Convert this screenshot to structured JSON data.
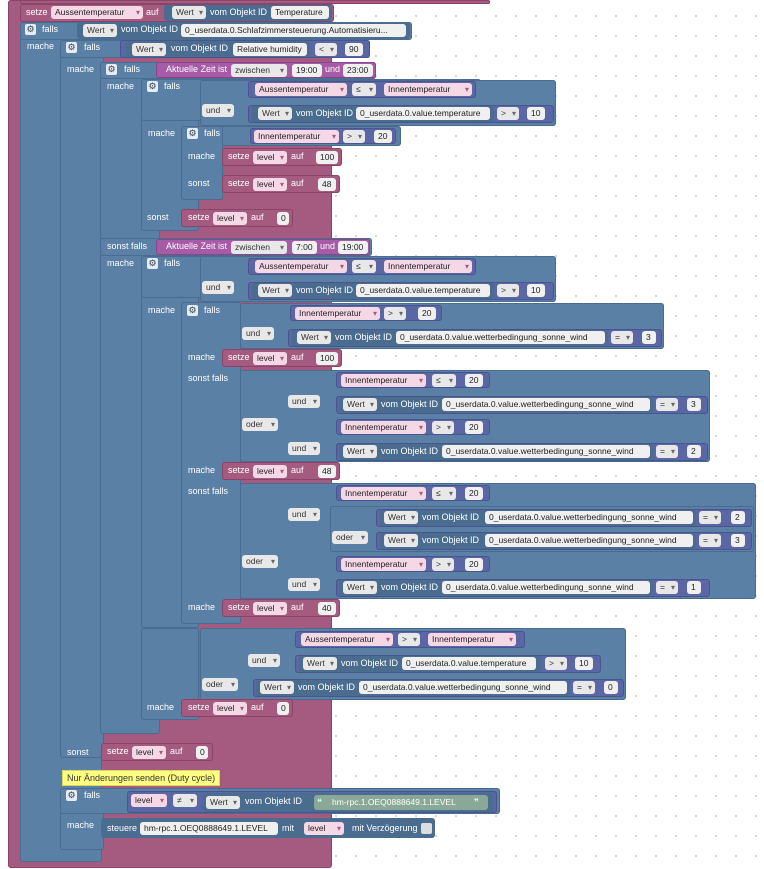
{
  "kw": {
    "setze": "setze",
    "auf": "auf",
    "falls": "falls",
    "mache": "mache",
    "sonst": "sonst",
    "sonst_falls": "sonst falls",
    "vom_objekt_id": "vom Objekt ID",
    "aktuelle_zeit_ist": "Aktuelle Zeit ist",
    "und_text": "und",
    "steuere": "steuere",
    "mit": "mit",
    "mit_verzoegerung": "mit Verzögerung"
  },
  "dd": {
    "wert": "Wert",
    "und": "und",
    "oder": "oder",
    "zwischen": "zwischen",
    "lt": "<",
    "le": "≤",
    "gt": ">",
    "eq": "=",
    "ne": "≠"
  },
  "vars": {
    "aussentemperatur": "Aussentemperatur",
    "innentemperatur": "Innentemperatur",
    "level": "level"
  },
  "ids": {
    "temperature": "Temperature",
    "automatisierung": "0_userdata.0.Schlafzimmersteuerung.Automatisieru...",
    "humidity": "Relative humidity",
    "value_temperature": "0_userdata.0.value.temperature",
    "wetter": "0_userdata.0.value.wetterbedingung_sonne_wind",
    "hm_level": "hm-rpc.1.OEQ0888649.1.LEVEL"
  },
  "nums": {
    "n90": "90",
    "n10": "10",
    "n20": "20",
    "n100": "100",
    "n48": "48",
    "n0": "0",
    "n3": "3",
    "n2": "2",
    "n40": "40",
    "n1": "1"
  },
  "times": {
    "t1900": "19:00",
    "t2300": "23:00",
    "t700": "7:00"
  },
  "comment": "Nur Änderungen senden (Duty cycle)",
  "colors": {
    "logic": "#5b80a5",
    "variable": "#a55b80",
    "time": "#a55ba5",
    "math": "#5b67a5",
    "comment": "#fefe82"
  }
}
